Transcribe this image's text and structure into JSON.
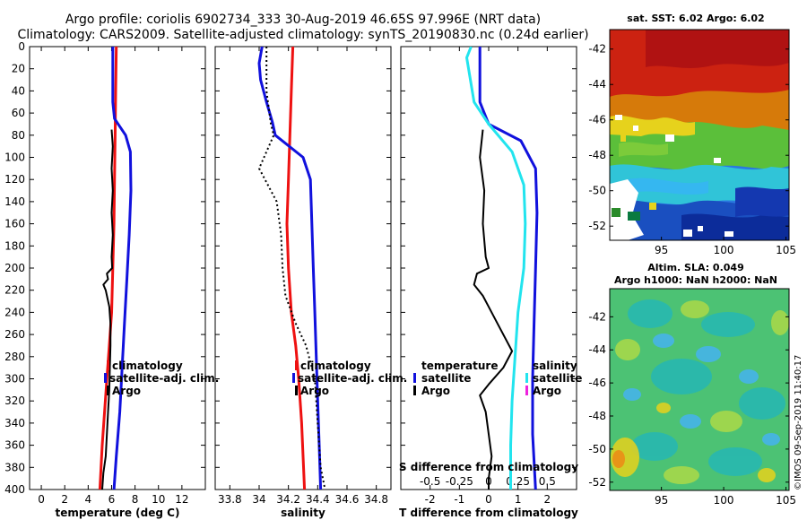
{
  "colors": {
    "climatology": "#ee1111",
    "satellite_adj": "#1111dd",
    "argo": "#000000",
    "satellite_cyan": "#22e4ee",
    "satellite_magenta": "#ee22dd"
  },
  "title": {
    "line1": "Argo profile: coriolis 6902734_333 30-Aug-2019 46.65S 97.996E (NRT data)",
    "line2": "Climatology: CARS2009. Satellite-adjusted climatology: synTS_20190830.nc (0.24d earlier)"
  },
  "timestamp": "©IMOS 09-Sep-2019 11:40:17",
  "chart_data": [
    {
      "type": "line",
      "name": "temperature",
      "xlabel": "temperature (deg C)",
      "ylabel": "",
      "xlim": [
        -1,
        14
      ],
      "ylim": [
        0,
        400
      ],
      "y_inverted": true,
      "xticks": [
        "0",
        "2",
        "4",
        "6",
        "8",
        "10",
        "12"
      ],
      "xtick_values": [
        0,
        2,
        4,
        6,
        8,
        10,
        12
      ],
      "yticks": [
        "0",
        "20",
        "40",
        "60",
        "80",
        "100",
        "120",
        "140",
        "160",
        "180",
        "200",
        "220",
        "240",
        "260",
        "280",
        "300",
        "320",
        "340",
        "360",
        "380",
        "400"
      ],
      "ytick_values": [
        0,
        20,
        40,
        60,
        80,
        100,
        120,
        140,
        160,
        180,
        200,
        220,
        240,
        260,
        280,
        300,
        320,
        340,
        360,
        380,
        400
      ],
      "legend": [
        "climatology",
        "satellite-adj. clim.",
        "Argo"
      ],
      "series": [
        {
          "name": "climatology",
          "color": "climatology",
          "width": 3,
          "points": [
            [
              6.4,
              0
            ],
            [
              6.35,
              40
            ],
            [
              6.3,
              80
            ],
            [
              6.25,
              120
            ],
            [
              6.2,
              160
            ],
            [
              6.1,
              200
            ],
            [
              6.0,
              240
            ],
            [
              5.8,
              270
            ],
            [
              5.6,
              300
            ],
            [
              5.4,
              330
            ],
            [
              5.2,
              360
            ],
            [
              5.0,
              400
            ]
          ]
        },
        {
          "name": "satellite-adj. clim.",
          "color": "satellite_adj",
          "width": 3,
          "points": [
            [
              6.1,
              0
            ],
            [
              6.1,
              50
            ],
            [
              6.25,
              65
            ],
            [
              7.2,
              80
            ],
            [
              7.6,
              95
            ],
            [
              7.65,
              130
            ],
            [
              7.5,
              170
            ],
            [
              7.3,
              210
            ],
            [
              7.1,
              250
            ],
            [
              6.9,
              290
            ],
            [
              6.7,
              330
            ],
            [
              6.4,
              370
            ],
            [
              6.2,
              400
            ]
          ]
        },
        {
          "name": "Argo",
          "color": "argo",
          "width": 2,
          "points": [
            [
              6.0,
              75
            ],
            [
              6.1,
              90
            ],
            [
              6.0,
              110
            ],
            [
              6.1,
              130
            ],
            [
              6.0,
              150
            ],
            [
              6.1,
              170
            ],
            [
              6.0,
              190
            ],
            [
              6.05,
              200
            ],
            [
              5.6,
              205
            ],
            [
              5.7,
              210
            ],
            [
              5.3,
              215
            ],
            [
              5.5,
              220
            ],
            [
              5.8,
              235
            ],
            [
              5.9,
              250
            ],
            [
              5.9,
              270
            ],
            [
              5.85,
              290
            ],
            [
              5.8,
              310
            ],
            [
              5.7,
              330
            ],
            [
              5.6,
              350
            ],
            [
              5.5,
              370
            ],
            [
              5.3,
              385
            ],
            [
              5.2,
              400
            ]
          ]
        }
      ]
    },
    {
      "type": "line",
      "name": "salinity",
      "xlabel": "salinity",
      "xlim": [
        33.7,
        34.9
      ],
      "ylim": [
        0,
        400
      ],
      "y_inverted": true,
      "xticks": [
        "33.8",
        "34",
        "34.2",
        "34.4",
        "34.6",
        "34.8"
      ],
      "xtick_values": [
        33.8,
        34.0,
        34.2,
        34.4,
        34.6,
        34.8
      ],
      "legend": [
        "climatology",
        "satellite-adj. clim.",
        "Argo"
      ],
      "series": [
        {
          "name": "climatology",
          "color": "climatology",
          "width": 3,
          "points": [
            [
              34.23,
              0
            ],
            [
              34.22,
              40
            ],
            [
              34.21,
              80
            ],
            [
              34.2,
              120
            ],
            [
              34.19,
              160
            ],
            [
              34.2,
              200
            ],
            [
              34.22,
              240
            ],
            [
              34.25,
              270
            ],
            [
              34.27,
              300
            ],
            [
              34.29,
              340
            ],
            [
              34.3,
              370
            ],
            [
              34.31,
              400
            ]
          ]
        },
        {
          "name": "satellite-adj. clim.",
          "color": "satellite_adj",
          "width": 3,
          "points": [
            [
              34.02,
              0
            ],
            [
              34.0,
              15
            ],
            [
              34.01,
              30
            ],
            [
              34.05,
              50
            ],
            [
              34.09,
              68
            ],
            [
              34.11,
              80
            ],
            [
              34.3,
              100
            ],
            [
              34.35,
              120
            ],
            [
              34.36,
              160
            ],
            [
              34.37,
              200
            ],
            [
              34.38,
              240
            ],
            [
              34.39,
              280
            ],
            [
              34.4,
              320
            ],
            [
              34.41,
              360
            ],
            [
              34.42,
              400
            ]
          ]
        },
        {
          "name": "Argo",
          "color": "argo",
          "width": 2,
          "dashed": true,
          "points": [
            [
              34.05,
              0
            ],
            [
              34.05,
              40
            ],
            [
              34.08,
              70
            ],
            [
              34.1,
              80
            ],
            [
              34.0,
              110
            ],
            [
              34.12,
              140
            ],
            [
              34.15,
              170
            ],
            [
              34.16,
              200
            ],
            [
              34.18,
              225
            ],
            [
              34.25,
              250
            ],
            [
              34.32,
              270
            ],
            [
              34.38,
              300
            ],
            [
              34.4,
              340
            ],
            [
              34.42,
              380
            ],
            [
              34.45,
              400
            ]
          ]
        }
      ]
    },
    {
      "type": "line",
      "name": "difference",
      "xlabel": "T difference from climatology",
      "secondary_xlabel": "S difference from climatology",
      "xlim": [
        -3,
        3
      ],
      "ylim": [
        0,
        400
      ],
      "y_inverted": true,
      "xticks": [
        "-2",
        "-1",
        "0",
        "1",
        "2"
      ],
      "xtick_values": [
        -2,
        -1,
        0,
        1,
        2
      ],
      "secondary_xticks": [
        "-0.5",
        "-0.25",
        "0",
        "0.25",
        "0.5"
      ],
      "secondary_xtick_values": [
        -2,
        -1,
        0,
        1,
        2
      ],
      "legend_left_title": "temperature",
      "legend_left": [
        "satellite",
        "Argo"
      ],
      "legend_right_title": "salinity",
      "legend_right": [
        "satellite",
        "Argo"
      ],
      "series": [
        {
          "name": "T satellite",
          "color": "satellite_adj",
          "width": 3,
          "points": [
            [
              -0.3,
              0
            ],
            [
              -0.3,
              50
            ],
            [
              0.0,
              70
            ],
            [
              1.1,
              85
            ],
            [
              1.6,
              110
            ],
            [
              1.65,
              150
            ],
            [
              1.6,
              200
            ],
            [
              1.55,
              250
            ],
            [
              1.5,
              300
            ],
            [
              1.5,
              350
            ],
            [
              1.6,
              400
            ]
          ]
        },
        {
          "name": "S satellite",
          "color": "satellite_cyan",
          "width": 3,
          "points": [
            [
              -0.6,
              0
            ],
            [
              -0.75,
              10
            ],
            [
              -0.5,
              50
            ],
            [
              0.0,
              70
            ],
            [
              0.8,
              95
            ],
            [
              1.2,
              125
            ],
            [
              1.25,
              160
            ],
            [
              1.2,
              200
            ],
            [
              1.0,
              240
            ],
            [
              0.9,
              280
            ],
            [
              0.8,
              320
            ],
            [
              0.75,
              360
            ],
            [
              0.75,
              400
            ]
          ]
        },
        {
          "name": "T Argo",
          "color": "argo",
          "width": 2,
          "points": [
            [
              -0.2,
              75
            ],
            [
              -0.3,
              100
            ],
            [
              -0.15,
              130
            ],
            [
              -0.2,
              160
            ],
            [
              -0.1,
              190
            ],
            [
              0.0,
              200
            ],
            [
              -0.4,
              205
            ],
            [
              -0.5,
              215
            ],
            [
              -0.2,
              225
            ],
            [
              0.0,
              235
            ],
            [
              0.3,
              250
            ],
            [
              0.8,
              275
            ],
            [
              0.5,
              290
            ],
            [
              0.0,
              305
            ],
            [
              -0.3,
              315
            ],
            [
              -0.1,
              330
            ],
            [
              0.0,
              350
            ],
            [
              0.1,
              370
            ],
            [
              0.0,
              390
            ],
            [
              0.0,
              400
            ]
          ]
        }
      ]
    }
  ],
  "maps": {
    "sst": {
      "title": "sat. SST: 6.02 Argo: 6.02",
      "yticks": [
        "-42",
        "-44",
        "-46",
        "-48",
        "-50",
        "-52"
      ],
      "ytick_values": [
        -42,
        -44,
        -46,
        -48,
        -50,
        -52
      ],
      "xticks": [
        "95",
        "100",
        "105"
      ],
      "xtick_values": [
        95,
        100,
        105
      ]
    },
    "sla": {
      "title1": "Altim. SLA: 0.049",
      "title2": "Argo h1000: NaN h2000: NaN",
      "yticks": [
        "-42",
        "-44",
        "-46",
        "-48",
        "-50",
        "-52"
      ],
      "ytick_values": [
        -42,
        -44,
        -46,
        -48,
        -50,
        -52
      ],
      "xticks": [
        "95",
        "100",
        "105"
      ],
      "xtick_values": [
        95,
        100,
        105
      ]
    }
  }
}
